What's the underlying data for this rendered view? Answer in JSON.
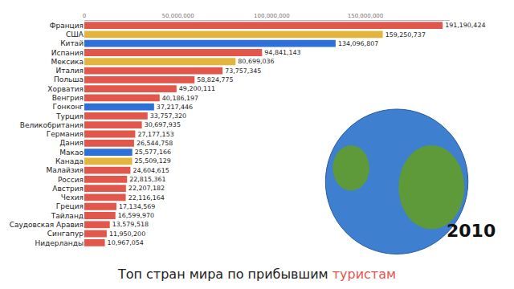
{
  "chart_data": {
    "type": "bar",
    "orientation": "horizontal",
    "title": "Топ стран мира по прибывшим туристам",
    "annotations": [
      "2010"
    ],
    "categories": [
      "Франция",
      "США",
      "Китай",
      "Испания",
      "Мексика",
      "Италия",
      "Польша",
      "Хорватия",
      "Венгрия",
      "Гонконг",
      "Турция",
      "Великобритания",
      "Германия",
      "Дания",
      "Макао",
      "Канада",
      "Малайзия",
      "Россия",
      "Австрия",
      "Чехия",
      "Греция",
      "Тайланд",
      "Саудовская Аравия",
      "Сингапур",
      "Нидерланды"
    ],
    "values": [
      191190424,
      159250737,
      134096807,
      94841143,
      80699036,
      73757345,
      58824775,
      49200111,
      40186197,
      37217446,
      33757320,
      30697935,
      27177153,
      26544758,
      25577166,
      25509129,
      24604615,
      22815361,
      22207182,
      22116164,
      17134569,
      16599970,
      13579518,
      11950200,
      10967054
    ],
    "value_labels": [
      "191,190,424",
      "159,250,737",
      "134,096,807",
      "94,841,143",
      "80,699,036",
      "73,757,345",
      "58,824,775",
      "49,200,111",
      "40,186,197",
      "37,217,446",
      "33,757,320",
      "30,697,935",
      "27,177,153",
      "26,544,758",
      "25,577,166",
      "25,509,129",
      "24,604,615",
      "22,815,361",
      "22,207,182",
      "22,116,164",
      "17,134,569",
      "16,599,970",
      "13,579,518",
      "11,950,200",
      "10,967,054"
    ],
    "colors": [
      "#e2574c",
      "#e3b53c",
      "#2f6fd8",
      "#e2574c",
      "#e3b53c",
      "#e2574c",
      "#e2574c",
      "#e2574c",
      "#e2574c",
      "#2f6fd8",
      "#e2574c",
      "#e2574c",
      "#e2574c",
      "#e2574c",
      "#2f6fd8",
      "#e3b53c",
      "#e2574c",
      "#e2574c",
      "#e2574c",
      "#e2574c",
      "#e2574c",
      "#e2574c",
      "#e2574c",
      "#e2574c",
      "#e2574c"
    ],
    "xlim": [
      0,
      195000000
    ],
    "xticks": [
      0,
      {
        "value": 50000000,
        "label": "50,000,000"
      },
      {
        "value": 100000000,
        "label": "100,000,000"
      },
      {
        "value": 150000000,
        "label": "150,000,000"
      }
    ],
    "grid": false,
    "data_labels": true
  }
}
